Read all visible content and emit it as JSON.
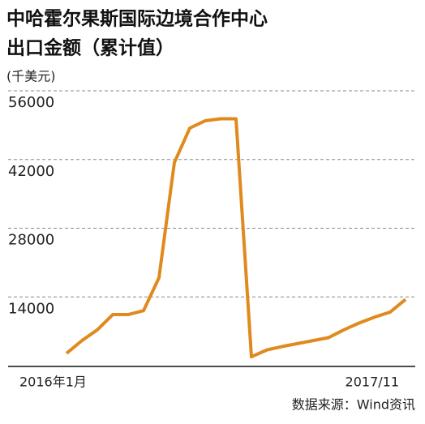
{
  "chart_data": {
    "type": "line",
    "title": "中哈霍尔果斯国际边境合作中心",
    "subtitle": "出口金额（累计值）",
    "y_label": "(千美元)",
    "source": "数据来源：Wind资讯",
    "categories": [
      "2016年1月",
      null,
      null,
      null,
      null,
      null,
      null,
      null,
      null,
      null,
      null,
      null,
      null,
      null,
      null,
      null,
      null,
      null,
      null,
      null,
      null,
      null,
      "2017/11"
    ],
    "series": [
      {
        "name": "出口金额",
        "color": "#e08a1e",
        "values": [
          2500,
          5100,
          7300,
          10400,
          10400,
          11200,
          17900,
          41400,
          48400,
          49900,
          50300,
          50300,
          1800,
          3200,
          3900,
          4500,
          5100,
          5700,
          7300,
          8700,
          9900,
          10900,
          13500
        ]
      }
    ],
    "ylim": [
      0,
      56000
    ],
    "yticks": [
      14000,
      28000,
      42000,
      56000
    ],
    "grid": true
  }
}
